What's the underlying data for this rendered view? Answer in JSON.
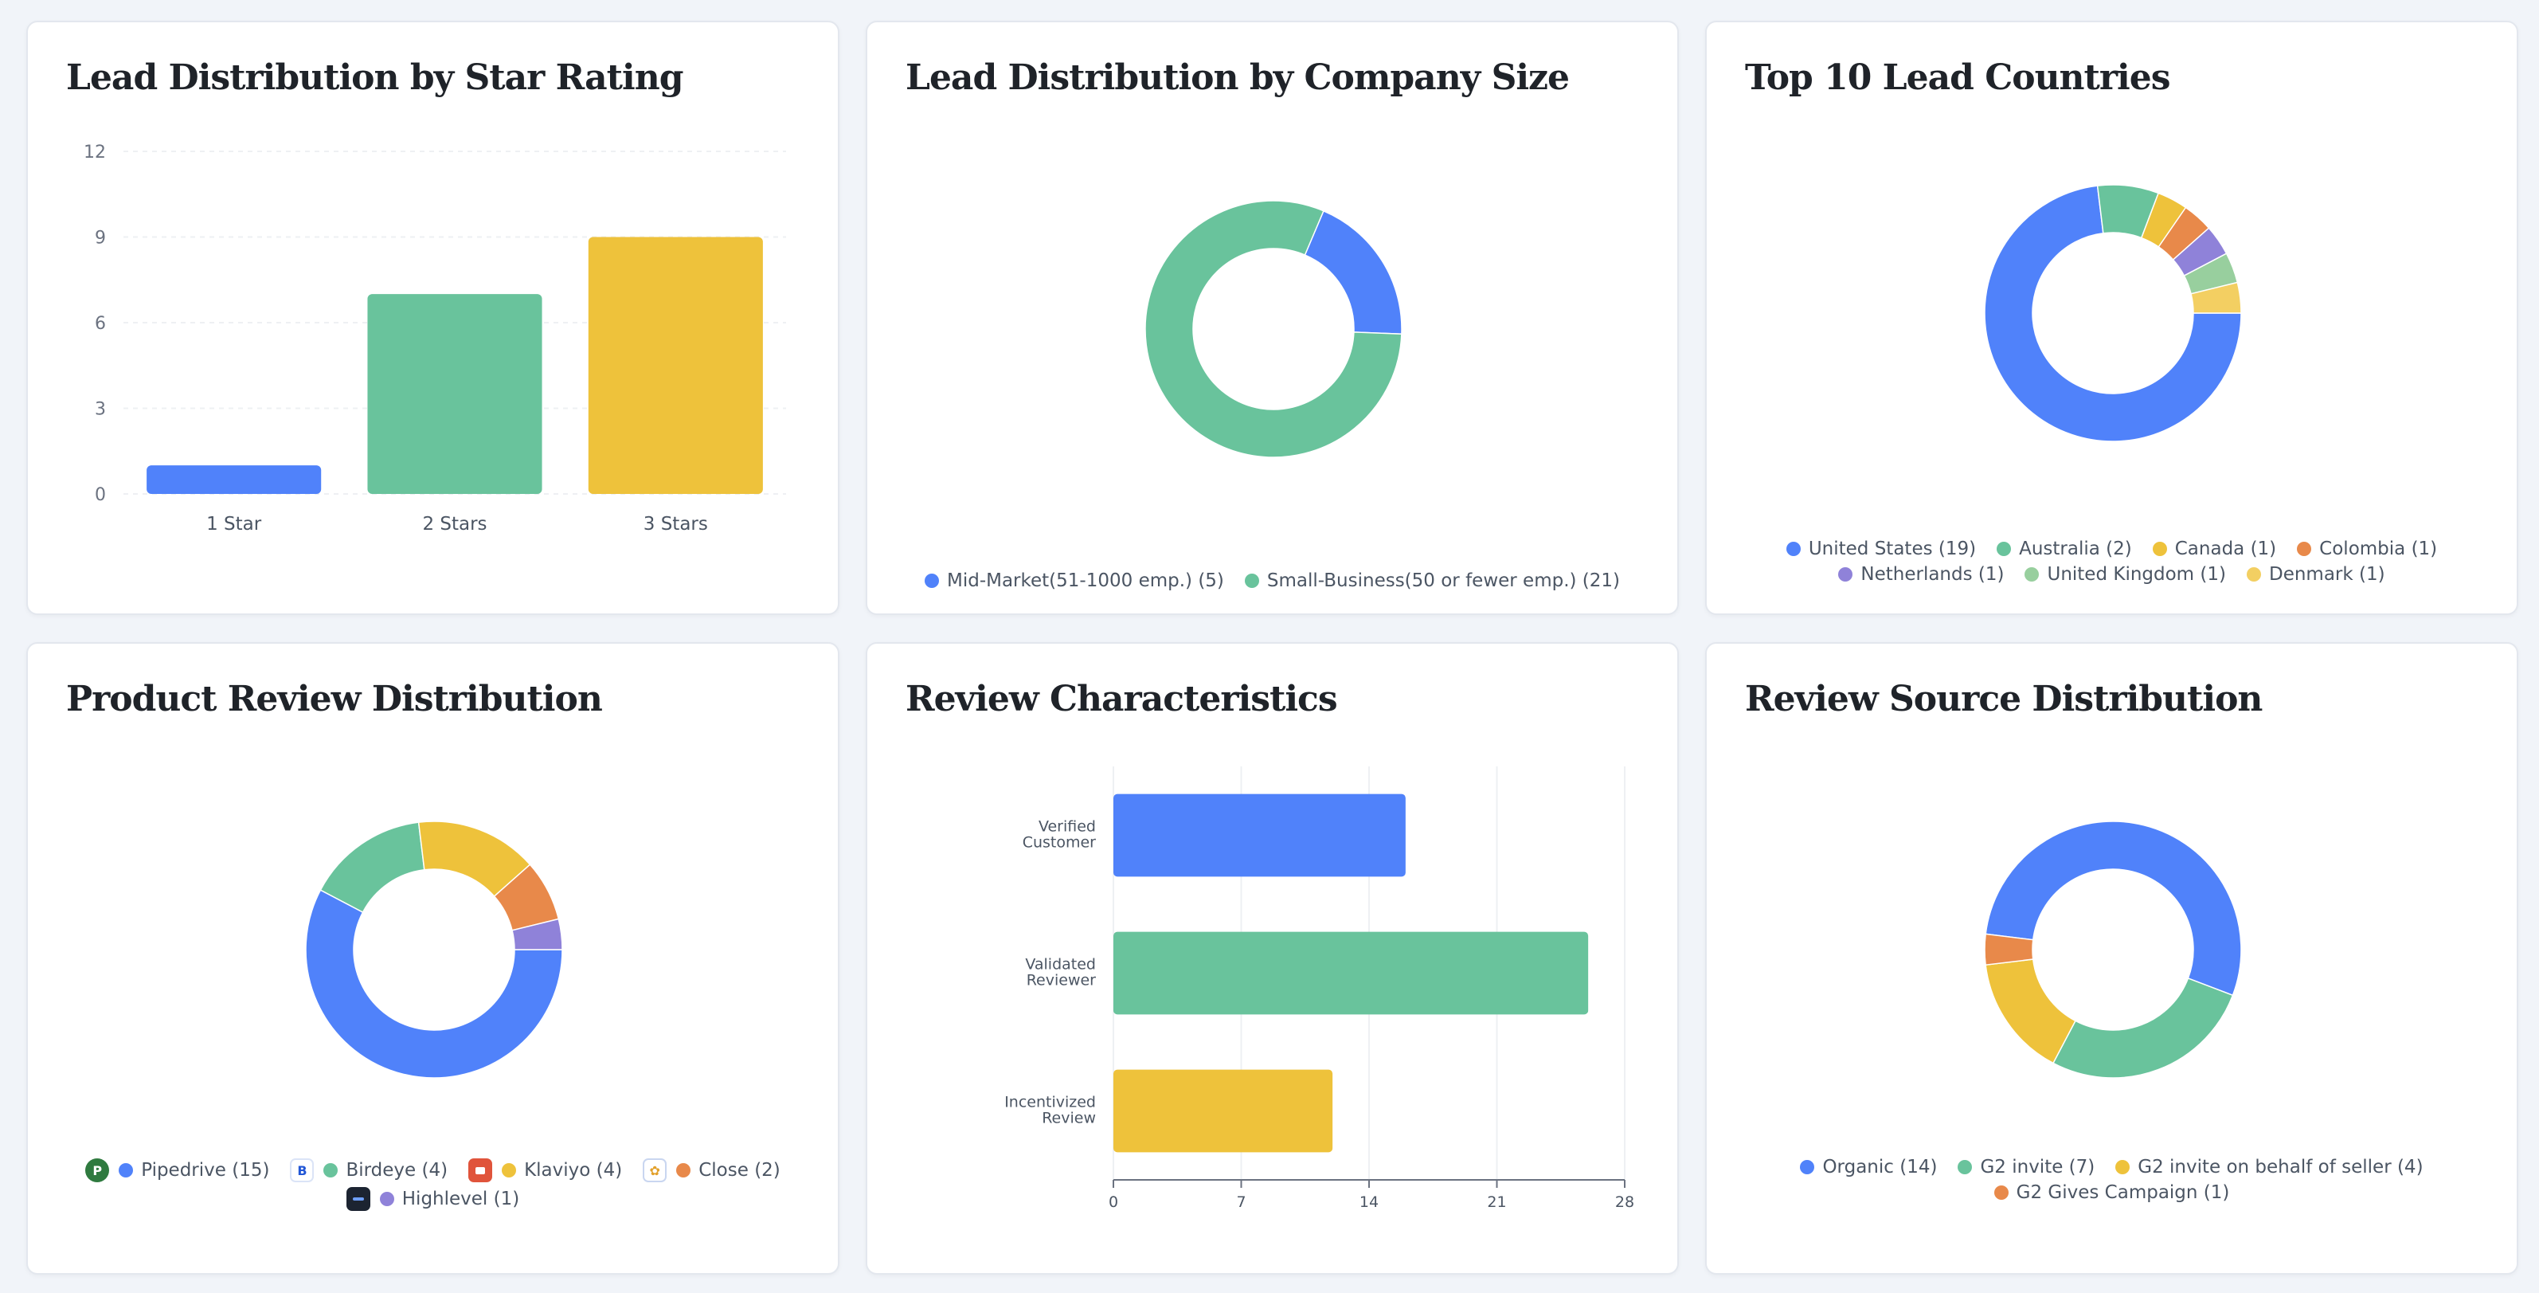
{
  "colors": {
    "blue": "#5082fa",
    "green": "#69c39c",
    "yellow": "#eec23b",
    "orange": "#e8894a",
    "purple": "#8f82d9",
    "lightgreen": "#98cf9e",
    "lightyellow": "#f3cf62"
  },
  "cards": {
    "star_rating": {
      "title": "Lead Distribution by Star Rating"
    },
    "company_size": {
      "title": "Lead Distribution by Company Size"
    },
    "countries": {
      "title": "Top 10 Lead Countries"
    },
    "product_review": {
      "title": "Product Review Distribution"
    },
    "review_characteristics": {
      "title": "Review Characteristics"
    },
    "review_source": {
      "title": "Review Source Distribution"
    }
  },
  "chart_data": [
    {
      "id": "star_rating",
      "type": "bar",
      "title": "Lead Distribution by Star Rating",
      "categories": [
        "1 Star",
        "2 Stars",
        "3 Stars"
      ],
      "values": [
        1,
        7,
        9
      ],
      "colors": [
        "#5082fa",
        "#69c39c",
        "#eec23b"
      ],
      "ylim": [
        0,
        12
      ],
      "yticks": [
        "0",
        "3",
        "6",
        "9",
        "12"
      ],
      "grid": true
    },
    {
      "id": "company_size",
      "type": "pie",
      "title": "Lead Distribution by Company Size",
      "labels": [
        "Mid-Market(51-1000 emp.)",
        "Small-Business(50 or fewer emp.)"
      ],
      "values": [
        5,
        21
      ],
      "legend": [
        "Mid-Market(51-1000 emp.) (5)",
        "Small-Business(50 or fewer emp.) (21)"
      ],
      "colors": [
        "#5082fa",
        "#69c39c"
      ],
      "legend_position": "bottom"
    },
    {
      "id": "countries",
      "type": "pie",
      "title": "Top 10 Lead Countries",
      "labels": [
        "United States",
        "Australia",
        "Canada",
        "Colombia",
        "Netherlands",
        "United Kingdom",
        "Denmark"
      ],
      "values": [
        19,
        2,
        1,
        1,
        1,
        1,
        1
      ],
      "legend": [
        "United States (19)",
        "Australia (2)",
        "Canada (1)",
        "Colombia (1)",
        "Netherlands (1)",
        "United Kingdom (1)",
        "Denmark (1)"
      ],
      "colors": [
        "#5082fa",
        "#69c39c",
        "#eec23b",
        "#e8894a",
        "#8f82d9",
        "#98cf9e",
        "#f3cf62"
      ],
      "legend_position": "bottom"
    },
    {
      "id": "product_review",
      "type": "pie",
      "title": "Product Review Distribution",
      "labels": [
        "Pipedrive",
        "Birdeye",
        "Klaviyo",
        "Close",
        "Highlevel"
      ],
      "values": [
        15,
        4,
        4,
        2,
        1
      ],
      "legend": [
        "Pipedrive (15)",
        "Birdeye (4)",
        "Klaviyo (4)",
        "Close (2)",
        "Highlevel (1)"
      ],
      "icons": [
        "pipedrive-logo-icon",
        "birdeye-logo-icon",
        "klaviyo-logo-icon",
        "close-logo-icon",
        "highlevel-logo-icon"
      ],
      "colors": [
        "#5082fa",
        "#69c39c",
        "#eec23b",
        "#e8894a",
        "#8f82d9"
      ],
      "legend_position": "bottom"
    },
    {
      "id": "review_characteristics",
      "type": "bar",
      "orientation": "horizontal",
      "title": "Review Characteristics",
      "categories": [
        [
          "Verified",
          "Customer"
        ],
        [
          "Validated",
          "Reviewer"
        ],
        [
          "Incentivized",
          "Review"
        ]
      ],
      "values": [
        16,
        26,
        12
      ],
      "colors": [
        "#5082fa",
        "#69c39c",
        "#eec23b"
      ],
      "xlim": [
        0,
        28
      ],
      "xticks": [
        "0",
        "7",
        "14",
        "21",
        "28"
      ],
      "grid": true
    },
    {
      "id": "review_source",
      "type": "pie",
      "title": "Review Source Distribution",
      "labels": [
        "Organic",
        "G2 invite",
        "G2 invite on behalf of seller",
        "G2 Gives Campaign"
      ],
      "values": [
        14,
        7,
        4,
        1
      ],
      "legend": [
        "Organic (14)",
        "G2 invite (7)",
        "G2 invite on behalf of seller (4)",
        "G2 Gives Campaign (1)"
      ],
      "colors": [
        "#5082fa",
        "#69c39c",
        "#eec23b",
        "#e8894a"
      ],
      "legend_position": "bottom"
    }
  ]
}
